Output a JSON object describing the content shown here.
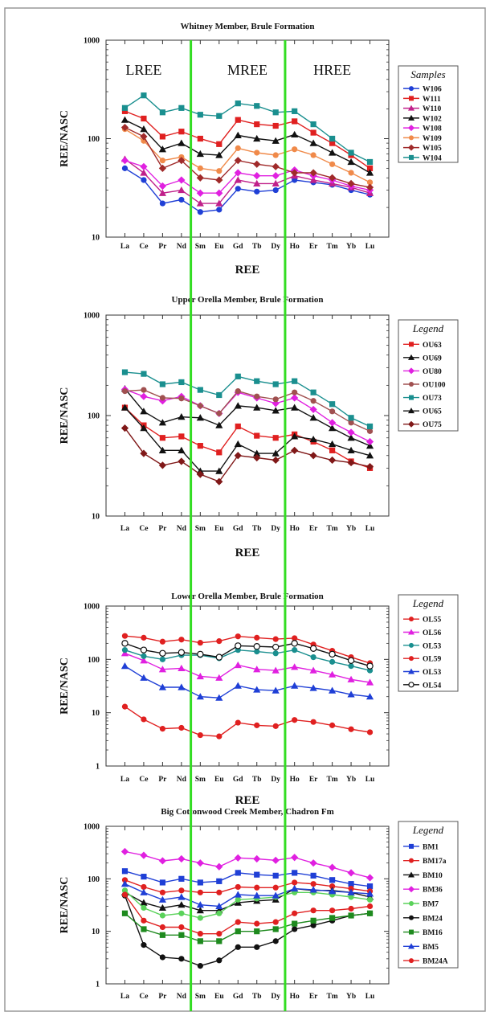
{
  "figure": {
    "region_labels": [
      "LREE",
      "MREE",
      "HREE"
    ],
    "colors": {
      "border": "#999999",
      "text": "#111111",
      "divider_green": "#33dd22",
      "plot_frame": "#333333"
    }
  },
  "chart_data": [
    {
      "type": "line",
      "title": "Whitney Member, Brule Formation",
      "xlabel": "REE",
      "ylabel": "REE/NASC",
      "yscale": "log",
      "ylim": [
        10,
        1000
      ],
      "yticks": [
        "10",
        "100",
        "1000"
      ],
      "categories": [
        "La",
        "Ce",
        "Pr",
        "Nd",
        "Sm",
        "Eu",
        "Gd",
        "Tb",
        "Dy",
        "Ho",
        "Er",
        "Tm",
        "Yb",
        "Lu"
      ],
      "legend_title": "Samples",
      "legend_position": "right",
      "series": [
        {
          "name": "W106",
          "color": "#1f3fd6",
          "marker": "circle",
          "values": [
            50,
            38,
            22,
            24,
            18,
            19,
            31,
            29,
            30,
            38,
            36,
            34,
            30,
            27
          ]
        },
        {
          "name": "W111",
          "color": "#e02020",
          "marker": "square",
          "values": [
            190,
            160,
            105,
            118,
            100,
            88,
            155,
            140,
            135,
            150,
            115,
            90,
            68,
            50
          ]
        },
        {
          "name": "W110",
          "color": "#c0208a",
          "marker": "triangle",
          "values": [
            62,
            45,
            28,
            30,
            22,
            22,
            38,
            35,
            35,
            42,
            38,
            35,
            32,
            28
          ]
        },
        {
          "name": "W102",
          "color": "#111111",
          "marker": "triangle",
          "values": [
            155,
            125,
            78,
            90,
            70,
            68,
            108,
            100,
            95,
            110,
            90,
            72,
            58,
            45
          ]
        },
        {
          "name": "W108",
          "color": "#e020e0",
          "marker": "diamond",
          "values": [
            60,
            52,
            33,
            38,
            28,
            28,
            45,
            42,
            42,
            48,
            42,
            38,
            33,
            30
          ]
        },
        {
          "name": "W109",
          "color": "#f08a4a",
          "marker": "circle",
          "values": [
            125,
            95,
            60,
            65,
            50,
            47,
            80,
            72,
            68,
            78,
            68,
            55,
            45,
            36
          ]
        },
        {
          "name": "W105",
          "color": "#a02a2a",
          "marker": "diamond",
          "values": [
            130,
            105,
            50,
            60,
            40,
            38,
            60,
            55,
            52,
            45,
            45,
            40,
            35,
            32
          ]
        },
        {
          "name": "W104",
          "color": "#1a8f8f",
          "marker": "square",
          "values": [
            205,
            275,
            185,
            205,
            175,
            170,
            228,
            215,
            185,
            190,
            140,
            100,
            72,
            58
          ]
        }
      ]
    },
    {
      "type": "line",
      "title": "Upper Orella Member, Brule Formation",
      "xlabel": "REE",
      "ylabel": "REE/NASC",
      "yscale": "log",
      "ylim": [
        10,
        1000
      ],
      "yticks": [
        "10",
        "100",
        "1000"
      ],
      "categories": [
        "La",
        "Ce",
        "Pr",
        "Nd",
        "Sm",
        "Eu",
        "Gd",
        "Tb",
        "Dy",
        "Ho",
        "Er",
        "Tm",
        "Yb",
        "Lu"
      ],
      "legend_title": "Legend",
      "legend_position": "right",
      "series": [
        {
          "name": "OU63",
          "color": "#e02020",
          "marker": "square",
          "values": [
            120,
            80,
            60,
            62,
            50,
            43,
            78,
            63,
            60,
            65,
            55,
            45,
            35,
            30
          ]
        },
        {
          "name": "OU69",
          "color": "#111111",
          "marker": "triangle",
          "values": [
            185,
            110,
            85,
            97,
            95,
            80,
            125,
            120,
            112,
            120,
            95,
            75,
            60,
            50
          ]
        },
        {
          "name": "OU80",
          "color": "#e020e0",
          "marker": "diamond",
          "values": [
            182,
            155,
            140,
            155,
            125,
            105,
            170,
            150,
            132,
            150,
            115,
            85,
            68,
            55
          ]
        },
        {
          "name": "OU100",
          "color": "#a05050",
          "marker": "circle",
          "values": [
            175,
            180,
            150,
            148,
            125,
            105,
            175,
            155,
            145,
            170,
            140,
            110,
            85,
            70
          ]
        },
        {
          "name": "OU73",
          "color": "#1a8f8f",
          "marker": "square",
          "values": [
            270,
            260,
            205,
            215,
            180,
            160,
            245,
            220,
            205,
            220,
            170,
            130,
            95,
            78
          ]
        },
        {
          "name": "OU65",
          "color": "#111111",
          "marker": "triangle",
          "values": [
            120,
            75,
            45,
            45,
            28,
            28,
            52,
            42,
            42,
            62,
            58,
            52,
            45,
            40
          ]
        },
        {
          "name": "OU75",
          "color": "#801818",
          "marker": "diamond",
          "values": [
            75,
            42,
            32,
            35,
            26,
            22,
            40,
            38,
            36,
            45,
            40,
            36,
            34,
            31
          ]
        }
      ]
    },
    {
      "type": "line",
      "title": "Lower Orella Member, Brule Formation",
      "xlabel": "REE",
      "ylabel": "REE/NASC",
      "yscale": "log",
      "ylim": [
        1,
        1000
      ],
      "yticks": [
        "1",
        "10",
        "100",
        "1000"
      ],
      "categories": [
        "La",
        "Ce",
        "Pr",
        "Nd",
        "Sm",
        "Eu",
        "Gd",
        "Tb",
        "Dy",
        "Ho",
        "Er",
        "Tm",
        "Yb",
        "Lu"
      ],
      "legend_title": "Legend",
      "legend_position": "right",
      "series": [
        {
          "name": "OL55",
          "color": "#e02020",
          "marker": "circle",
          "values": [
            275,
            255,
            215,
            235,
            205,
            220,
            270,
            255,
            240,
            250,
            190,
            145,
            110,
            85
          ]
        },
        {
          "name": "OL56",
          "color": "#e020e0",
          "marker": "triangle",
          "values": [
            130,
            95,
            65,
            68,
            48,
            45,
            78,
            65,
            62,
            72,
            62,
            52,
            42,
            37
          ]
        },
        {
          "name": "OL53",
          "color": "#1a8f8f",
          "marker": "circle",
          "values": [
            150,
            115,
            100,
            120,
            120,
            105,
            150,
            140,
            130,
            150,
            110,
            90,
            75,
            62
          ]
        },
        {
          "name": "OL59",
          "color": "#e02020",
          "marker": "circle",
          "values": [
            13,
            7.5,
            5.0,
            5.2,
            3.8,
            3.6,
            6.5,
            5.8,
            5.6,
            7.3,
            6.7,
            5.8,
            4.9,
            4.3
          ]
        },
        {
          "name": "OL53",
          "color": "#1f3fd6",
          "marker": "triangle",
          "values": [
            75,
            45,
            30,
            30,
            20,
            19,
            32,
            27,
            26,
            32,
            29,
            26,
            22,
            20
          ]
        },
        {
          "name": "OL54",
          "color": "#111111",
          "marker": "opencircle",
          "values": [
            200,
            150,
            130,
            135,
            125,
            110,
            180,
            175,
            170,
            200,
            160,
            125,
            95,
            75
          ]
        }
      ]
    },
    {
      "type": "line",
      "title": "Big Cottonwood Creek Member, Chadron Fm",
      "xlabel": "",
      "ylabel": "REE/NASC",
      "yscale": "log",
      "ylim": [
        1,
        1000
      ],
      "yticks": [
        "1",
        "10",
        "100",
        "1000"
      ],
      "categories": [
        "La",
        "Ce",
        "Pr",
        "Nd",
        "Sm",
        "Eu",
        "Gd",
        "Tb",
        "Dy",
        "Ho",
        "Er",
        "Tm",
        "Yb",
        "Lu"
      ],
      "legend_title": "Legend",
      "legend_position": "right",
      "series": [
        {
          "name": "BM1",
          "color": "#1f3fd6",
          "marker": "square",
          "values": [
            140,
            110,
            85,
            100,
            85,
            90,
            130,
            120,
            115,
            130,
            115,
            95,
            80,
            72
          ]
        },
        {
          "name": "BM17a",
          "color": "#e02020",
          "marker": "circle",
          "values": [
            95,
            70,
            55,
            60,
            55,
            55,
            70,
            68,
            68,
            85,
            80,
            72,
            65,
            58
          ]
        },
        {
          "name": "BM10",
          "color": "#111111",
          "marker": "triangle",
          "values": [
            55,
            35,
            28,
            32,
            25,
            25,
            35,
            38,
            40,
            65,
            60,
            60,
            55,
            45
          ]
        },
        {
          "name": "BM36",
          "color": "#e020e0",
          "marker": "diamond",
          "values": [
            330,
            280,
            220,
            240,
            200,
            170,
            250,
            240,
            225,
            255,
            200,
            165,
            130,
            105
          ]
        },
        {
          "name": "BM7",
          "color": "#5ad25a",
          "marker": "circle",
          "values": [
            60,
            28,
            20,
            22,
            18,
            22,
            40,
            42,
            45,
            55,
            55,
            50,
            45,
            40
          ]
        },
        {
          "name": "BM24",
          "color": "#111111",
          "marker": "circle",
          "values": [
            48,
            5.5,
            3.2,
            3.0,
            2.2,
            2.8,
            5.0,
            5.0,
            6.5,
            11,
            13,
            16,
            20,
            22
          ]
        },
        {
          "name": "BM16",
          "color": "#1e8a1e",
          "marker": "square",
          "values": [
            22,
            11,
            8.5,
            8.5,
            6.5,
            6.5,
            10,
            10,
            11,
            14,
            16,
            18,
            20,
            22
          ]
        },
        {
          "name": "BM5",
          "color": "#1f3fd6",
          "marker": "triangle",
          "values": [
            80,
            55,
            40,
            45,
            32,
            30,
            50,
            48,
            48,
            65,
            62,
            58,
            55,
            52
          ]
        },
        {
          "name": "BM24A",
          "color": "#e02020",
          "marker": "circle",
          "values": [
            50,
            16,
            12,
            12,
            9,
            9,
            15,
            14,
            15,
            22,
            25,
            25,
            27,
            30
          ]
        }
      ]
    }
  ]
}
